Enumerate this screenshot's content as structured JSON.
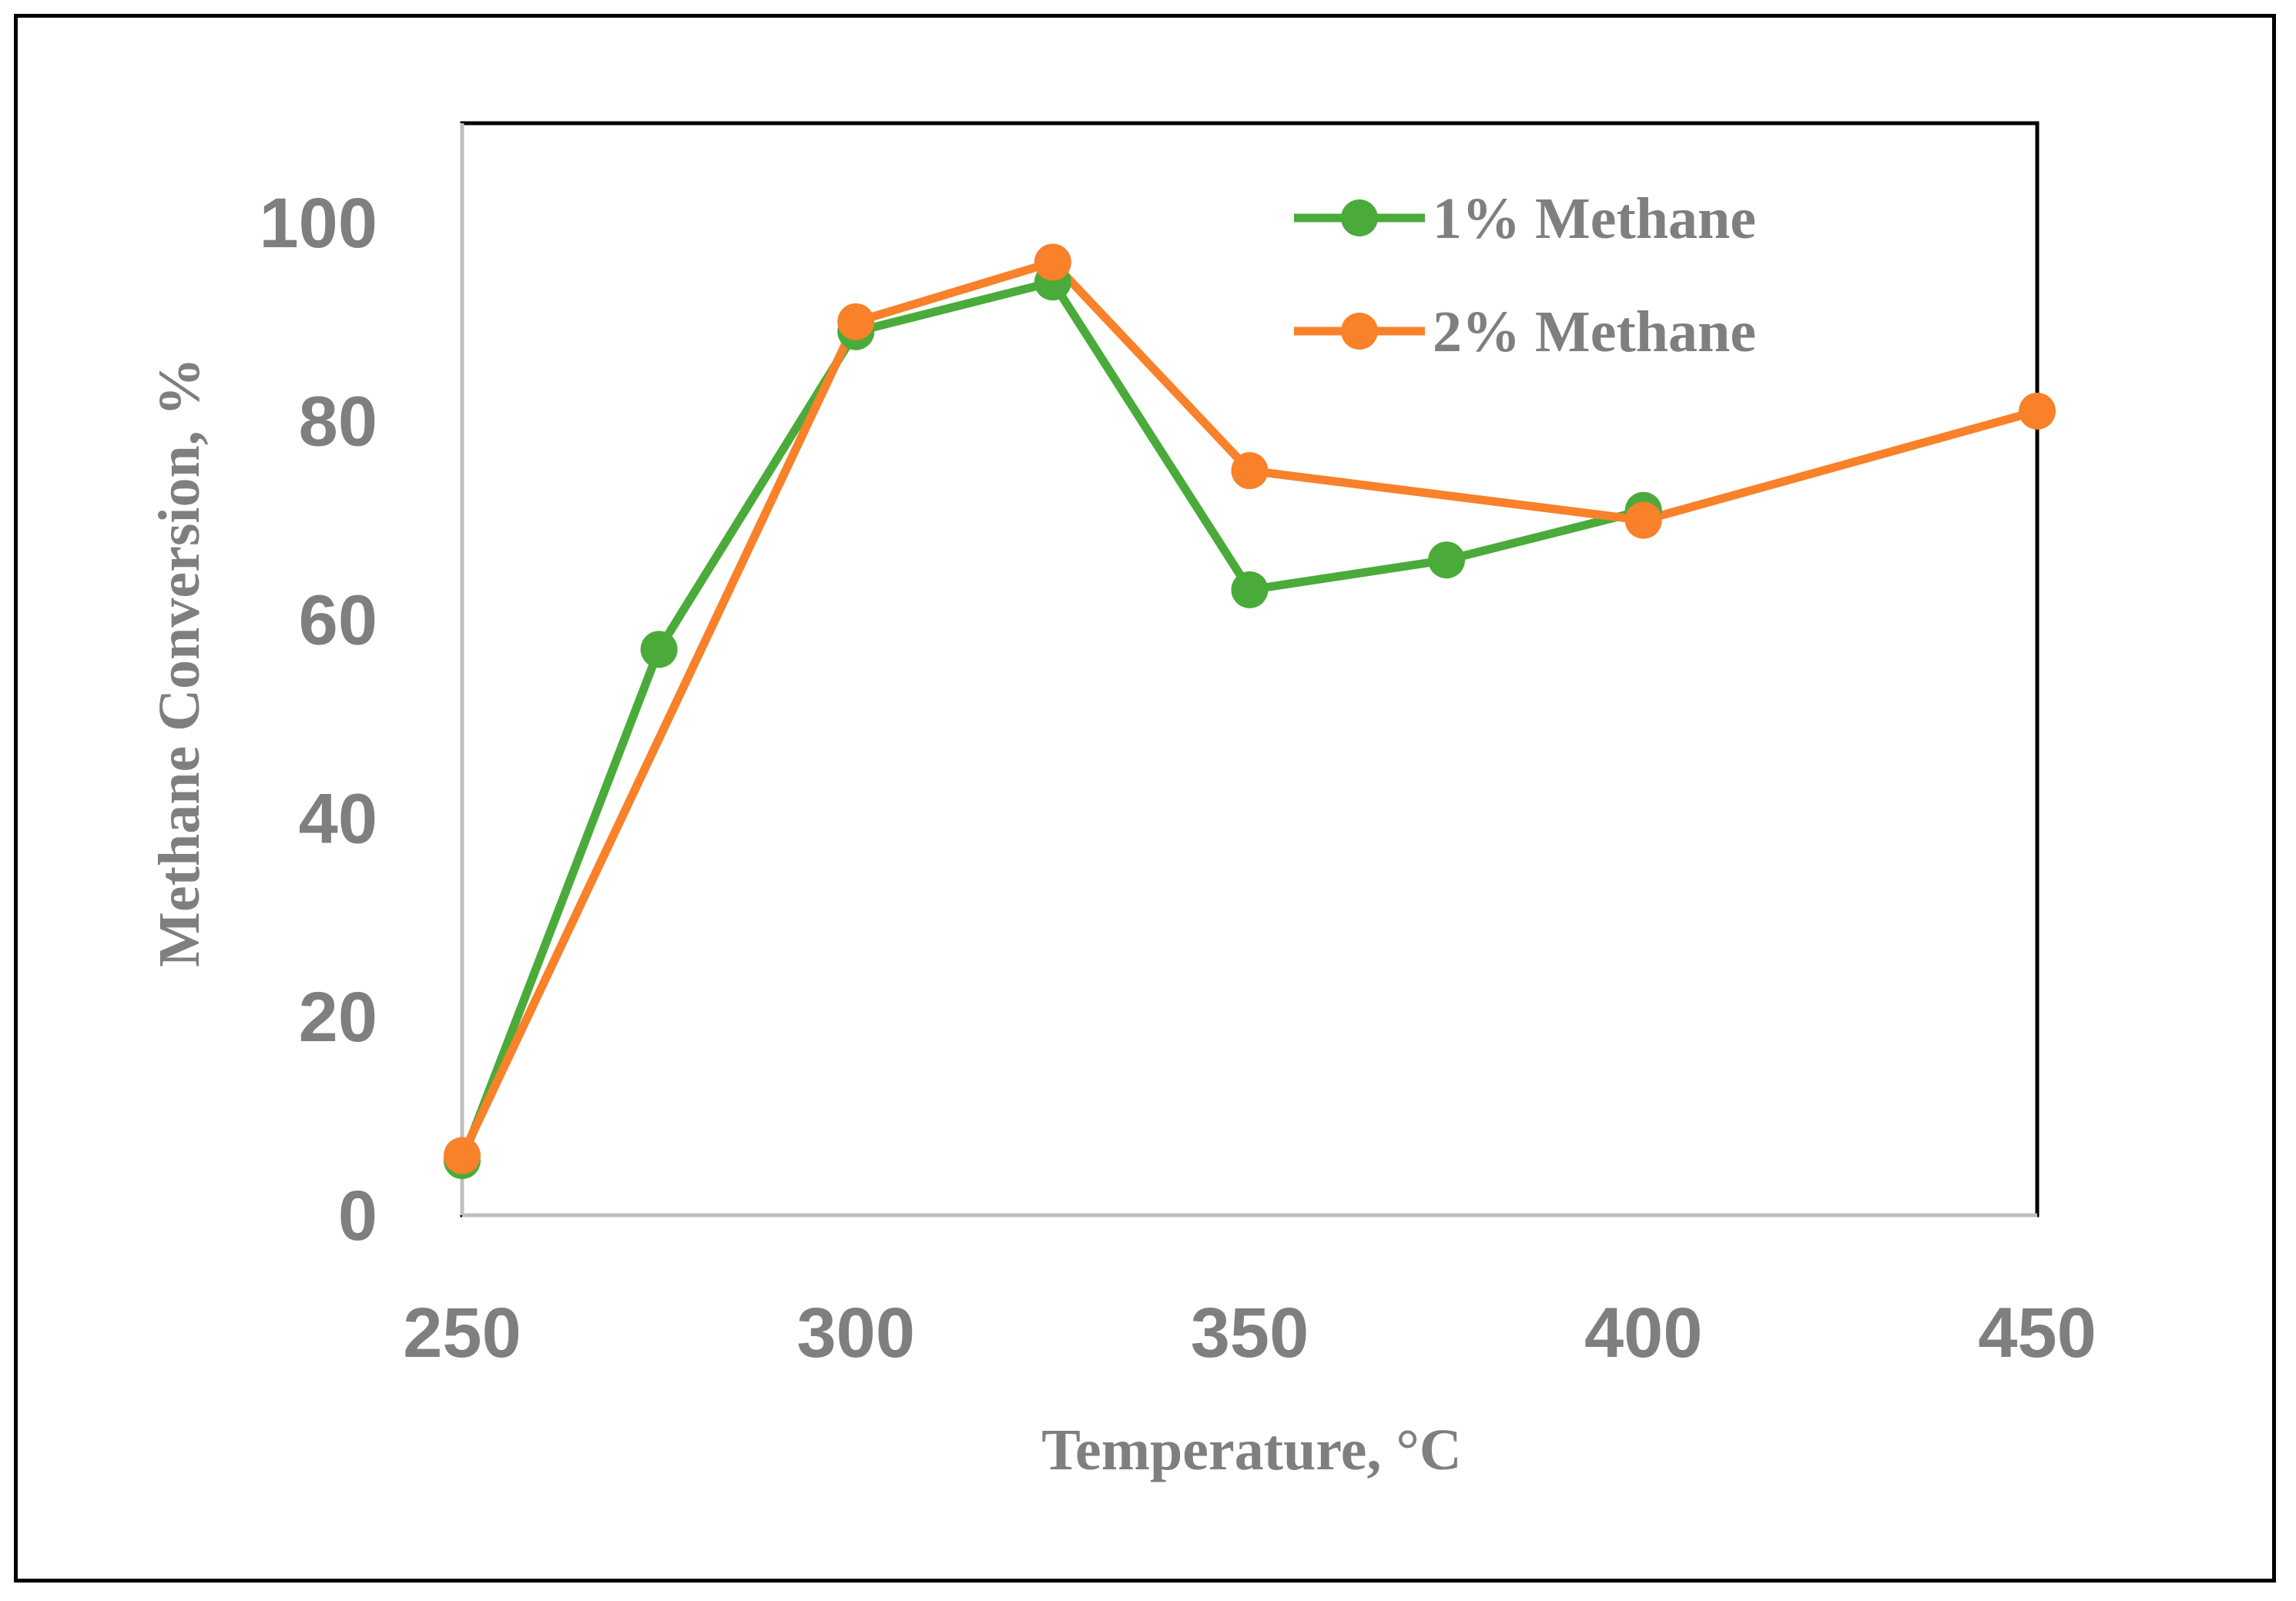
{
  "chart_data": {
    "type": "line",
    "title": "",
    "xlabel": "Temperature, °C",
    "ylabel": "Methane Conversion, %",
    "xlim": [
      250,
      450
    ],
    "ylim": [
      0,
      110
    ],
    "x_ticks": [
      "250",
      "300",
      "350",
      "400",
      "450"
    ],
    "y_ticks": [
      "0",
      "20",
      "40",
      "60",
      "80",
      "100"
    ],
    "grid": false,
    "legend_position": "top-right",
    "series": [
      {
        "name": "1% Methane",
        "color": "#4aab3a",
        "x": [
          250,
          275,
          300,
          325,
          350,
          375,
          400
        ],
        "y": [
          5.5,
          57,
          89,
          94,
          63,
          66,
          71
        ]
      },
      {
        "name": "2% Methane",
        "color": "#f8812a",
        "x": [
          250,
          300,
          325,
          350,
          400,
          450
        ],
        "y": [
          6,
          90,
          96,
          75,
          70,
          81
        ]
      }
    ]
  }
}
